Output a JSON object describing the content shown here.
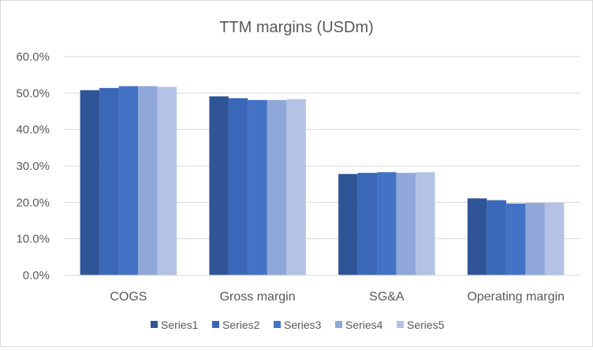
{
  "chart_data": {
    "type": "bar",
    "title": "TTM margins (USDm)",
    "xlabel": "",
    "ylabel": "",
    "ylim": [
      0,
      0.6
    ],
    "yticks": [
      "0.0%",
      "10.0%",
      "20.0%",
      "30.0%",
      "40.0%",
      "50.0%",
      "60.0%"
    ],
    "grid": true,
    "legend_position": "bottom",
    "categories": [
      "COGS",
      "Gross margin",
      "SG&A",
      "Operating margin"
    ],
    "series": [
      {
        "name": "Series1",
        "color": "#2f5597",
        "values": [
          0.508,
          0.491,
          0.278,
          0.211
        ]
      },
      {
        "name": "Series2",
        "color": "#3a67b7",
        "values": [
          0.514,
          0.486,
          0.281,
          0.206
        ]
      },
      {
        "name": "Series3",
        "color": "#4472c4",
        "values": [
          0.519,
          0.481,
          0.283,
          0.197
        ]
      },
      {
        "name": "Series4",
        "color": "#8fa8d9",
        "values": [
          0.519,
          0.481,
          0.281,
          0.199
        ]
      },
      {
        "name": "Series5",
        "color": "#b4c2e6",
        "values": [
          0.517,
          0.483,
          0.283,
          0.199
        ]
      }
    ]
  }
}
